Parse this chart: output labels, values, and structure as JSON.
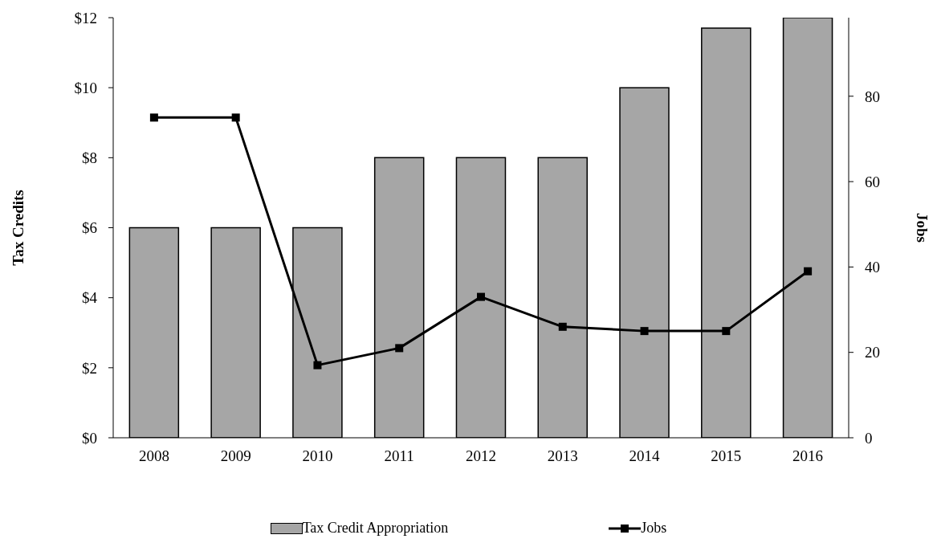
{
  "chart_data": {
    "type": "bar",
    "categories": [
      "2008",
      "2009",
      "2010",
      "2011",
      "2012",
      "2013",
      "2014",
      "2015",
      "2016"
    ],
    "ylabel": "Tax Credits",
    "y2label": "Jobs",
    "series": [
      {
        "name": "Tax Credit Appropriation",
        "color": "#a6a6a6",
        "values": [
          6,
          6,
          6,
          8,
          8,
          8,
          10,
          11.7,
          12
        ]
      },
      {
        "name": "Jobs",
        "type": "line",
        "axis": "y2",
        "color": "#000000",
        "marker": "square",
        "values": [
          75,
          75,
          17,
          21,
          33,
          26,
          25,
          25,
          39
        ]
      }
    ],
    "ylim": [
      0,
      12
    ],
    "yticks": [
      {
        "value": 0,
        "label": "$0"
      },
      {
        "value": 2,
        "label": "$2"
      },
      {
        "value": 4,
        "label": "$4"
      },
      {
        "value": 6,
        "label": "$6"
      },
      {
        "value": 8,
        "label": "$8"
      },
      {
        "value": 10,
        "label": "$10"
      },
      {
        "value": 12,
        "label": "$12"
      }
    ],
    "y2lim": [
      0,
      98.4
    ],
    "y2ticks": [
      0,
      20,
      40,
      60,
      80
    ],
    "grid": false,
    "legend": "bottom"
  }
}
